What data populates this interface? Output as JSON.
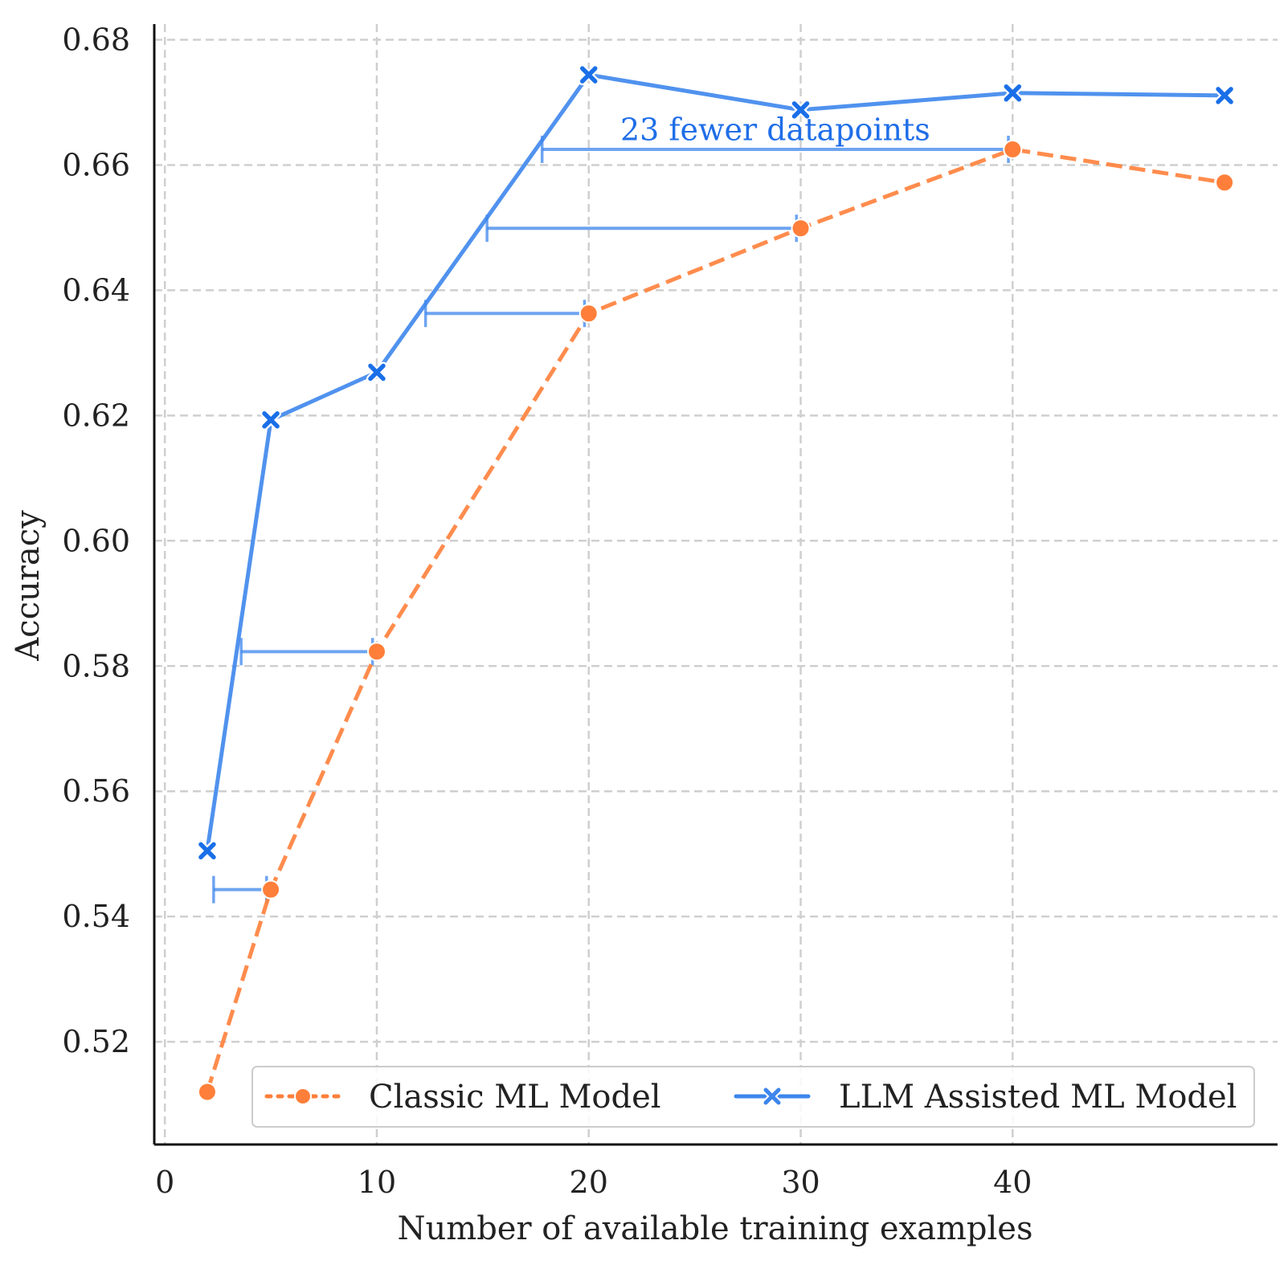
{
  "chart_data": {
    "type": "line",
    "title": "",
    "xlabel": "Number of available training examples",
    "ylabel": "Accuracy",
    "xlim": [
      -0.5,
      52.5
    ],
    "ylim": [
      0.5036,
      0.6825
    ],
    "xticks": [
      0,
      10,
      20,
      30,
      40
    ],
    "xtick_labels": [
      "0",
      "10",
      "20",
      "30",
      "40"
    ],
    "yticks": [
      0.52,
      0.54,
      0.56,
      0.58,
      0.6,
      0.62,
      0.64,
      0.66,
      0.68
    ],
    "ytick_labels": [
      "0.52",
      "0.54",
      "0.56",
      "0.58",
      "0.60",
      "0.62",
      "0.64",
      "0.66",
      "0.68"
    ],
    "grid": true,
    "legend_position": "lower-right",
    "series": [
      {
        "name": "Classic ML Model",
        "color": "#ff7f3a",
        "line": "dashed",
        "marker": "circle",
        "x": [
          2,
          5,
          10,
          20,
          30,
          40,
          50
        ],
        "y": [
          0.512,
          0.5443,
          0.5823,
          0.6363,
          0.6499,
          0.6625,
          0.6572
        ]
      },
      {
        "name": "LLM Assisted ML Model",
        "color": "#3d86ec",
        "line": "solid",
        "marker": "x",
        "x": [
          2,
          5,
          10,
          20,
          30,
          40,
          50
        ],
        "y": [
          0.5505,
          0.6193,
          0.6269,
          0.6744,
          0.6688,
          0.6715,
          0.6711
        ]
      }
    ],
    "intervals": [
      {
        "y": 0.5443,
        "x_from": 2.3,
        "x_to": 4.8
      },
      {
        "y": 0.5823,
        "x_from": 3.6,
        "x_to": 9.8
      },
      {
        "y": 0.6363,
        "x_from": 12.3,
        "x_to": 19.8
      },
      {
        "y": 0.6499,
        "x_from": 15.2,
        "x_to": 29.8
      },
      {
        "y": 0.6625,
        "x_from": 17.8,
        "x_to": 39.8
      }
    ],
    "annotations": [
      {
        "text": "23 fewer datapoints",
        "x": 28.8,
        "y": 0.664
      }
    ]
  }
}
